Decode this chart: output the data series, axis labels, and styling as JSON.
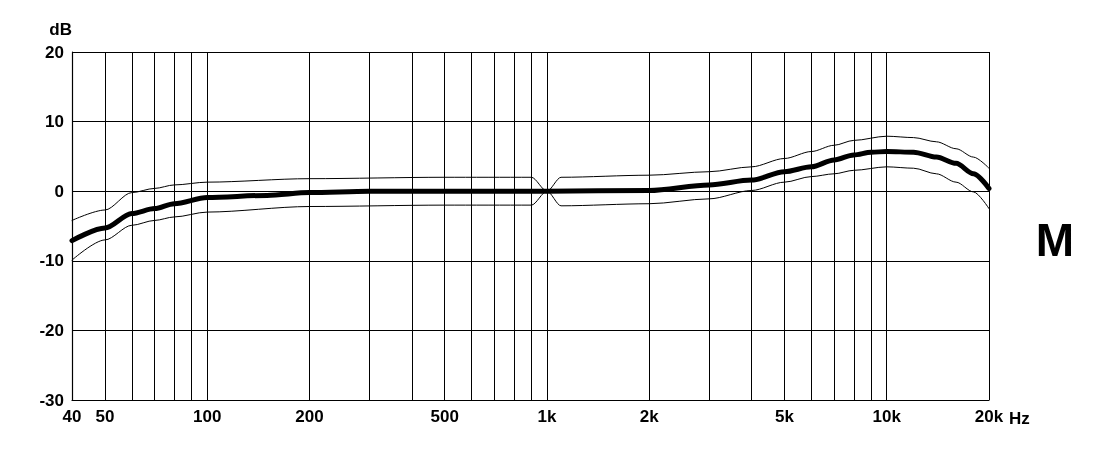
{
  "chart_data": {
    "type": "line",
    "xlabel": "Hz",
    "ylabel": "dB",
    "log": "x",
    "grid": true,
    "marker": "none",
    "line_style": "solid",
    "xlim": [
      40,
      20000
    ],
    "xticks": [
      40,
      50,
      {
        "value": 60,
        "label": null
      },
      {
        "value": 70,
        "label": null
      },
      {
        "value": 80,
        "label": null
      },
      {
        "value": 90,
        "label": null
      },
      100,
      200,
      {
        "value": 300,
        "label": null
      },
      {
        "value": 400,
        "label": null
      },
      500,
      {
        "value": 600,
        "label": null
      },
      {
        "value": 700,
        "label": null
      },
      {
        "value": 800,
        "label": null
      },
      {
        "value": 900,
        "label": null
      },
      {
        "value": 1000,
        "label": "1k"
      },
      {
        "value": 2000,
        "label": "2k"
      },
      {
        "value": 3000,
        "label": null
      },
      {
        "value": 4000,
        "label": null
      },
      {
        "value": 5000,
        "label": "5k"
      },
      {
        "value": 6000,
        "label": null
      },
      {
        "value": 7000,
        "label": null
      },
      {
        "value": 8000,
        "label": null
      },
      {
        "value": 9000,
        "label": null
      },
      {
        "value": 10000,
        "label": "10k"
      },
      {
        "value": 20000,
        "label": "20k"
      }
    ],
    "ylim": [
      -30,
      20
    ],
    "yticks": [
      -30,
      -20,
      -10,
      0,
      10,
      20
    ],
    "annotations": [
      "M"
    ],
    "series": [
      {
        "color": "#000000",
        "x": [
          40,
          50,
          60,
          70,
          80,
          100,
          150,
          200,
          300,
          500,
          1000,
          2000,
          3000,
          4000,
          5000,
          6000,
          7000,
          8000,
          9000,
          10000,
          12000,
          14000,
          16000,
          18000,
          20000
        ],
        "values": [
          -7.1,
          -5.3,
          -3.2,
          -2.5,
          -1.8,
          -0.9,
          -0.6,
          -0.2,
          0,
          0,
          0,
          0.1,
          0.9,
          1.6,
          2.8,
          3.5,
          4.5,
          5.2,
          5.6,
          5.7,
          5.6,
          4.9,
          4.0,
          2.5,
          0.4
        ]
      },
      {
        "color": "#000000",
        "x": [
          40,
          50,
          60,
          70,
          80,
          100,
          200,
          500,
          900,
          1000,
          1100,
          2000,
          3000,
          4000,
          5000,
          6000,
          7000,
          8000,
          10000,
          12000,
          14000,
          16000,
          18000,
          20000
        ],
        "values": [
          -4.2,
          -2.7,
          -0.2,
          0.4,
          0.9,
          1.3,
          1.8,
          2,
          2,
          0,
          2,
          2.3,
          2.8,
          3.5,
          4.7,
          5.7,
          6.6,
          7.3,
          7.9,
          7.7,
          7.1,
          6.1,
          4.9,
          3.3
        ]
      },
      {
        "color": "#000000",
        "x": [
          40,
          50,
          60,
          70,
          80,
          100,
          200,
          500,
          900,
          1000,
          1100,
          2000,
          3000,
          4000,
          5000,
          6000,
          7000,
          8000,
          10000,
          12000,
          14000,
          16000,
          18000,
          20000
        ],
        "values": [
          -9.9,
          -7.0,
          -4.9,
          -4.2,
          -3.7,
          -3.0,
          -2.2,
          -2,
          -2,
          0,
          -2.1,
          -1.8,
          -1.1,
          0.1,
          1.3,
          2.1,
          2.5,
          3.0,
          3.5,
          3.3,
          2.5,
          1.3,
          -0.1,
          -2.5
        ]
      }
    ]
  }
}
